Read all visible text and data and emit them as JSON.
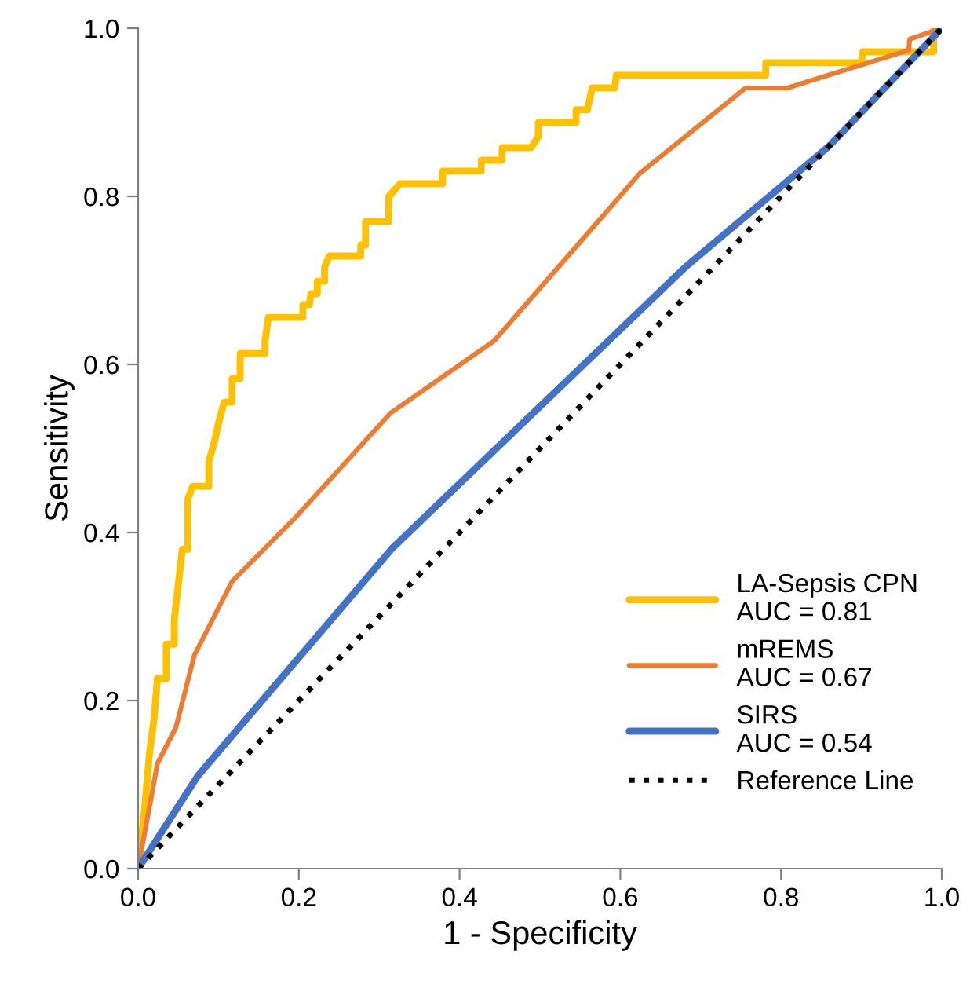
{
  "chart_data": {
    "type": "line",
    "xlabel": "1 - Specificity",
    "ylabel": "Sensitivity",
    "xlim": [
      0,
      1
    ],
    "ylim": [
      0,
      1
    ],
    "xticks": [
      {
        "value": 0,
        "label": "0.0"
      },
      {
        "value": 0.2,
        "label": "0.2"
      },
      {
        "value": 0.4,
        "label": "0.4"
      },
      {
        "value": 0.6,
        "label": "0.6"
      },
      {
        "value": 0.8,
        "label": "0.8"
      },
      {
        "value": 1,
        "label": "1.0"
      }
    ],
    "yticks": [
      {
        "value": 0,
        "label": "0.0"
      },
      {
        "value": 0.2,
        "label": "0.2"
      },
      {
        "value": 0.4,
        "label": "0.4"
      },
      {
        "value": 0.6,
        "label": "0.6"
      },
      {
        "value": 0.8,
        "label": "0.8"
      },
      {
        "value": 1,
        "label": "1.0"
      }
    ],
    "grid": false,
    "legend": "bottom right",
    "marker": "none",
    "series": [
      {
        "name": "LA-Sepsis CPN\nAUC = 0.81",
        "color": "#ffc000",
        "line_style": "solid",
        "x": [
          0,
          0.008,
          0.014,
          0.02,
          0.024,
          0.035,
          0.035,
          0.045,
          0.045,
          0.05,
          0.055,
          0.062,
          0.062,
          0.068,
          0.088,
          0.088,
          0.096,
          0.1,
          0.107,
          0.117,
          0.117,
          0.127,
          0.127,
          0.158,
          0.158,
          0.162,
          0.205,
          0.205,
          0.213,
          0.215,
          0.223,
          0.223,
          0.232,
          0.232,
          0.238,
          0.277,
          0.277,
          0.283,
          0.283,
          0.312,
          0.312,
          0.326,
          0.379,
          0.379,
          0.427,
          0.427,
          0.453,
          0.453,
          0.489,
          0.498,
          0.498,
          0.545,
          0.545,
          0.559,
          0.565,
          0.593,
          0.595,
          0.781,
          0.781,
          0.9,
          0.902,
          0.99,
          0.99,
          1
        ],
        "values": [
          0,
          0.07,
          0.136,
          0.18,
          0.226,
          0.226,
          0.267,
          0.267,
          0.297,
          0.338,
          0.38,
          0.38,
          0.44,
          0.455,
          0.455,
          0.484,
          0.512,
          0.53,
          0.555,
          0.555,
          0.583,
          0.583,
          0.613,
          0.613,
          0.628,
          0.656,
          0.656,
          0.671,
          0.671,
          0.684,
          0.684,
          0.699,
          0.699,
          0.716,
          0.729,
          0.729,
          0.742,
          0.742,
          0.77,
          0.77,
          0.8,
          0.815,
          0.815,
          0.83,
          0.83,
          0.843,
          0.843,
          0.858,
          0.858,
          0.871,
          0.888,
          0.888,
          0.903,
          0.903,
          0.929,
          0.929,
          0.944,
          0.944,
          0.959,
          0.959,
          0.972,
          0.972,
          1.0,
          1.0
        ]
      },
      {
        "name": "mREMS\nAUC = 0.67",
        "color": "#ed7d31",
        "line_style": "solid",
        "x": [
          0,
          0.024,
          0.047,
          0.07,
          0.117,
          0.193,
          0.314,
          0.443,
          0.625,
          0.756,
          0.808,
          0.959,
          0.96,
          1
        ],
        "values": [
          0,
          0.125,
          0.168,
          0.254,
          0.342,
          0.415,
          0.542,
          0.628,
          0.828,
          0.929,
          0.929,
          0.974,
          0.987,
          1
        ]
      },
      {
        "name": "SIRS\nAUC = 0.54",
        "color": "#4472c4",
        "line_style": "solid",
        "x": [
          0,
          0.074,
          0.316,
          0.68,
          0.86,
          1
        ],
        "values": [
          0,
          0.11,
          0.381,
          0.715,
          0.86,
          1
        ]
      },
      {
        "name": "Reference Line",
        "color": "#000000",
        "line_style": "dotted",
        "x": [
          0,
          1
        ],
        "values": [
          0,
          1
        ]
      }
    ]
  }
}
